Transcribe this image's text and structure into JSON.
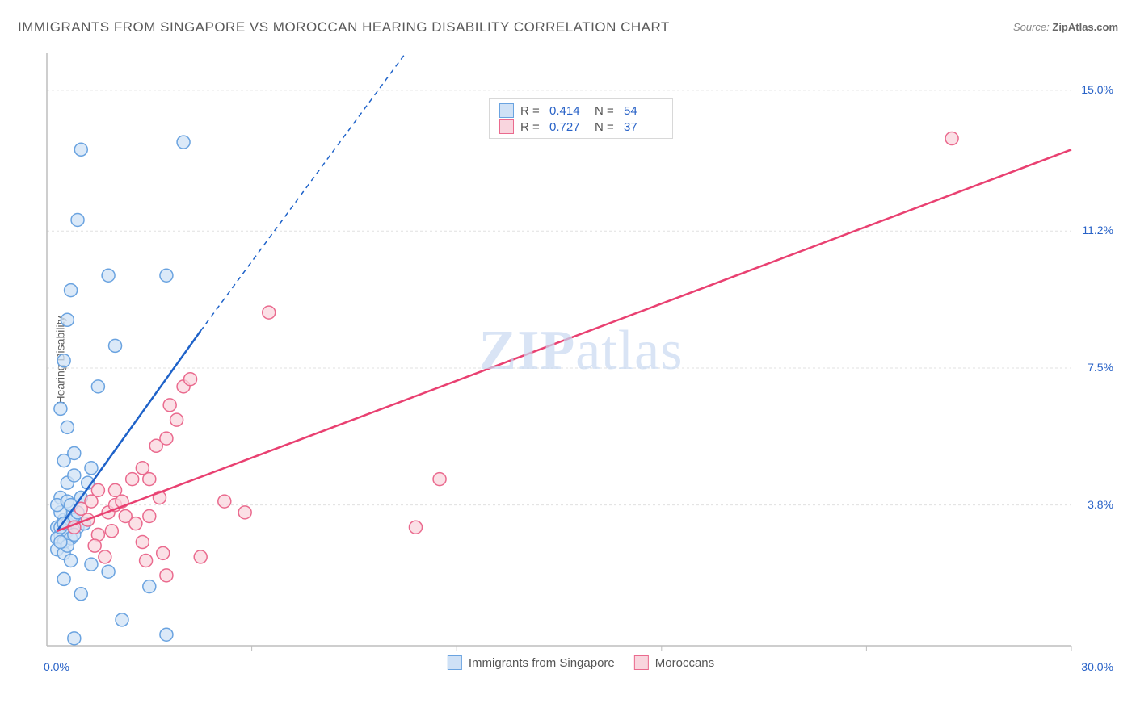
{
  "title": "IMMIGRANTS FROM SINGAPORE VS MOROCCAN HEARING DISABILITY CORRELATION CHART",
  "source_prefix": "Source: ",
  "source_name": "ZipAtlas.com",
  "y_axis_label": "Hearing Disability",
  "watermark_1": "ZIP",
  "watermark_2": "atlas",
  "chart": {
    "type": "scatter",
    "xlim": [
      0,
      30
    ],
    "ylim": [
      0,
      16
    ],
    "x_tick_positions": [
      0,
      6,
      12,
      18,
      24,
      30
    ],
    "y_ticks": [
      3.8,
      7.5,
      11.2,
      15.0
    ],
    "y_tick_labels": [
      "3.8%",
      "7.5%",
      "11.2%",
      "15.0%"
    ],
    "x_min_label": "0.0%",
    "x_max_label": "30.0%",
    "grid_color": "#e0e0e0",
    "axis_color": "#bdbdbd",
    "background_color": "#ffffff",
    "series": [
      {
        "name": "Immigrants from Singapore",
        "color_fill": "#cfe1f6",
        "color_stroke": "#6aa3e0",
        "line_color": "#1e62c9",
        "R": "0.414",
        "N": "54",
        "trend": {
          "x1": 0.3,
          "y1": 3.1,
          "x2_solid": 4.5,
          "y2_solid": 8.5,
          "x2_dash": 10.5,
          "y2_dash": 16.0
        },
        "points": [
          [
            0.3,
            3.2
          ],
          [
            0.4,
            3.0
          ],
          [
            0.5,
            3.4
          ],
          [
            0.3,
            2.9
          ],
          [
            0.6,
            3.3
          ],
          [
            0.5,
            2.8
          ],
          [
            0.7,
            3.5
          ],
          [
            0.4,
            3.6
          ],
          [
            0.6,
            3.1
          ],
          [
            0.8,
            3.4
          ],
          [
            0.3,
            2.6
          ],
          [
            0.5,
            2.5
          ],
          [
            0.7,
            2.9
          ],
          [
            0.9,
            3.2
          ],
          [
            0.4,
            4.0
          ],
          [
            0.6,
            4.4
          ],
          [
            0.8,
            4.6
          ],
          [
            1.0,
            4.0
          ],
          [
            1.2,
            4.4
          ],
          [
            0.5,
            5.0
          ],
          [
            0.8,
            5.2
          ],
          [
            1.3,
            4.8
          ],
          [
            0.6,
            5.9
          ],
          [
            1.0,
            4.0
          ],
          [
            0.4,
            6.4
          ],
          [
            1.5,
            7.0
          ],
          [
            0.5,
            7.7
          ],
          [
            2.0,
            8.1
          ],
          [
            0.6,
            8.8
          ],
          [
            0.7,
            9.6
          ],
          [
            1.8,
            10.0
          ],
          [
            0.9,
            11.5
          ],
          [
            3.5,
            10.0
          ],
          [
            1.0,
            13.4
          ],
          [
            4.0,
            13.6
          ],
          [
            0.7,
            2.3
          ],
          [
            1.3,
            2.2
          ],
          [
            0.5,
            1.8
          ],
          [
            1.0,
            1.4
          ],
          [
            1.8,
            2.0
          ],
          [
            2.2,
            0.7
          ],
          [
            3.5,
            0.3
          ],
          [
            3.0,
            1.6
          ],
          [
            0.8,
            0.2
          ],
          [
            0.3,
            3.8
          ],
          [
            0.6,
            3.9
          ],
          [
            0.4,
            3.2
          ],
          [
            0.9,
            3.6
          ],
          [
            0.7,
            3.8
          ],
          [
            0.5,
            3.3
          ],
          [
            0.8,
            3.0
          ],
          [
            0.6,
            2.7
          ],
          [
            1.1,
            3.3
          ],
          [
            0.4,
            2.8
          ]
        ]
      },
      {
        "name": "Moroccans",
        "color_fill": "#f9d5de",
        "color_stroke": "#ea6a8e",
        "line_color": "#e94071",
        "R": "0.727",
        "N": "37",
        "trend": {
          "x1": 0.3,
          "y1": 3.1,
          "x2_solid": 30.0,
          "y2_solid": 13.4
        },
        "points": [
          [
            0.8,
            3.2
          ],
          [
            1.2,
            3.4
          ],
          [
            1.5,
            3.0
          ],
          [
            1.8,
            3.6
          ],
          [
            2.0,
            3.8
          ],
          [
            2.3,
            3.5
          ],
          [
            2.6,
            3.3
          ],
          [
            2.8,
            2.8
          ],
          [
            3.0,
            3.5
          ],
          [
            3.4,
            2.5
          ],
          [
            1.4,
            2.7
          ],
          [
            1.7,
            2.4
          ],
          [
            2.9,
            2.3
          ],
          [
            3.5,
            1.9
          ],
          [
            4.5,
            2.4
          ],
          [
            1.5,
            4.2
          ],
          [
            2.0,
            4.2
          ],
          [
            2.8,
            4.8
          ],
          [
            3.2,
            5.4
          ],
          [
            3.5,
            5.6
          ],
          [
            3.8,
            6.1
          ],
          [
            4.0,
            7.0
          ],
          [
            4.2,
            7.2
          ],
          [
            3.6,
            6.5
          ],
          [
            5.2,
            3.9
          ],
          [
            5.8,
            3.6
          ],
          [
            6.5,
            9.0
          ],
          [
            11.5,
            4.5
          ],
          [
            10.8,
            3.2
          ],
          [
            26.5,
            13.7
          ],
          [
            1.0,
            3.7
          ],
          [
            1.3,
            3.9
          ],
          [
            1.9,
            3.1
          ],
          [
            2.2,
            3.9
          ],
          [
            2.5,
            4.5
          ],
          [
            3.3,
            4.0
          ],
          [
            3.0,
            4.5
          ]
        ]
      }
    ]
  },
  "legend_labels": {
    "R": "R =",
    "N": "N ="
  }
}
